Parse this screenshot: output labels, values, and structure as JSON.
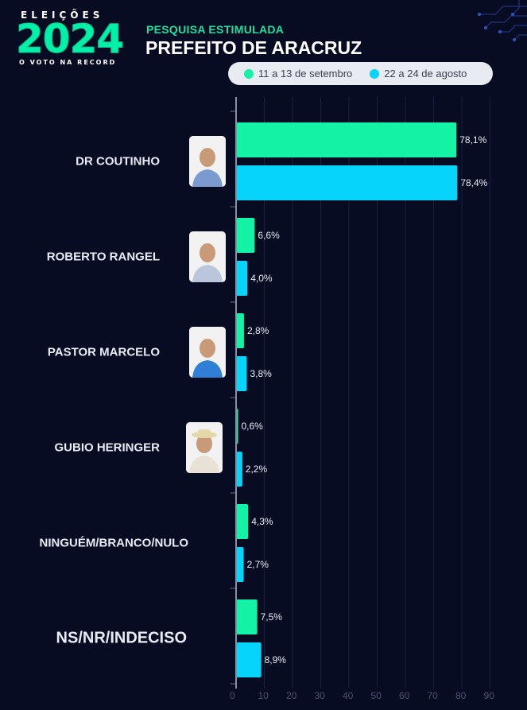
{
  "header": {
    "logo_top": "ELEIÇÕES",
    "logo_year": "2024",
    "logo_sub": "O VOTO NA RECORD",
    "subtitle": "PESQUISA ESTIMULADA",
    "title": "PREFEITO DE ARACRUZ"
  },
  "colors": {
    "series1": "#14f2a6",
    "series2": "#06d4fa",
    "background": "#070c22"
  },
  "chart_data": {
    "type": "bar",
    "orientation": "horizontal",
    "categories": [
      "DR COUTINHO",
      "ROBERTO RANGEL",
      "PASTOR MARCELO",
      "GUBIO HERINGER",
      "NINGUÉM/BRANCO/NULO",
      "NS/NR/INDECISO"
    ],
    "series": [
      {
        "name": "11 a 13 de setembro",
        "values": [
          78.1,
          6.6,
          2.8,
          0.6,
          4.3,
          7.5
        ],
        "labels": [
          "78,1%",
          "6,6%",
          "2,8%",
          "0,6%",
          "4,3%",
          "7,5%"
        ]
      },
      {
        "name": "22 a 24 de agosto",
        "values": [
          78.4,
          4.0,
          3.8,
          2.2,
          2.7,
          8.9
        ],
        "labels": [
          "78,4%",
          "4,0%",
          "3,8%",
          "2,2%",
          "2,7%",
          "8,9%"
        ]
      }
    ],
    "xlim": [
      0,
      90
    ],
    "xticks": [
      0,
      10,
      20,
      30,
      40,
      50,
      60,
      70,
      80,
      90
    ],
    "xtick_labels": [
      "0",
      "10",
      "20",
      "30",
      "40",
      "50",
      "60",
      "70",
      "80",
      "90"
    ],
    "grid": true,
    "legend_position": "top"
  }
}
